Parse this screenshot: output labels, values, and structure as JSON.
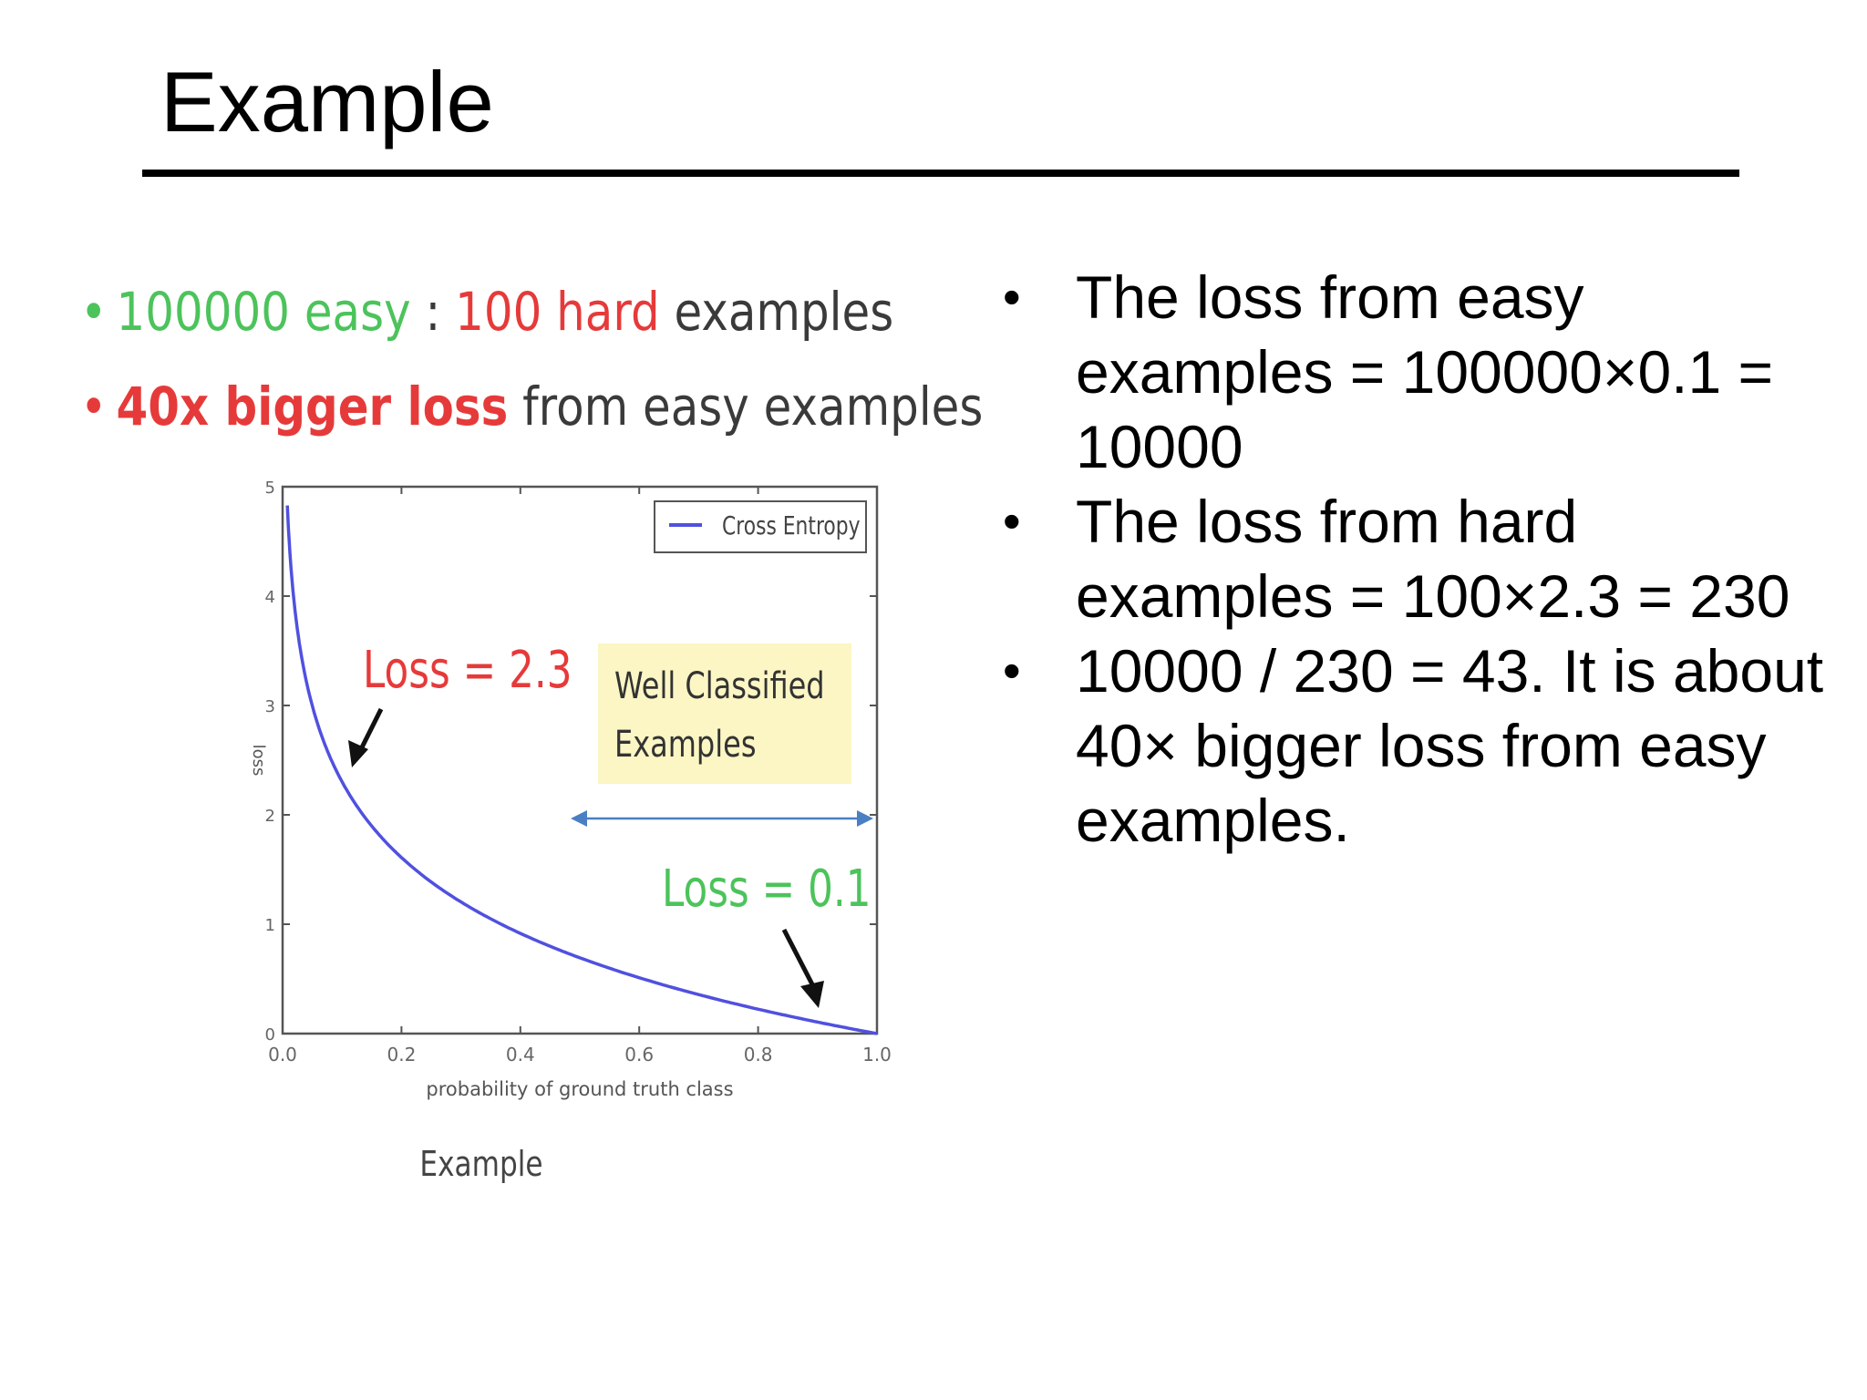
{
  "slide": {
    "title": "Example"
  },
  "left_bullets": [
    {
      "parts": [
        {
          "text": "100000 easy",
          "color": "#4cc35b",
          "bold": false
        },
        {
          "text": " : ",
          "color": "#3a3a3a",
          "bold": false
        },
        {
          "text": "100 hard",
          "color": "#e63a3a",
          "bold": false
        },
        {
          "text": " examples",
          "color": "#3a3a3a",
          "bold": false
        }
      ],
      "bullet_color": "#4cc35b"
    },
    {
      "parts": [
        {
          "text": "40x bigger loss",
          "color": "#e63a3a",
          "bold": true
        },
        {
          "text": " from easy examples",
          "color": "#3a3a3a",
          "bold": false
        }
      ],
      "bullet_color": "#e63a3a"
    }
  ],
  "right_bullets": [
    "The loss from easy examples = 100000×0.1 = 10000",
    "The loss from hard examples = 100×2.3 = 230",
    "10000 / 230 = 43. It is about 40× bigger loss from easy examples."
  ],
  "chart_data": {
    "type": "line",
    "xlabel": "probability of ground truth class",
    "ylabel": "loss",
    "caption": "Example",
    "xlim": [
      0,
      1
    ],
    "ylim": [
      0,
      5
    ],
    "x_ticks": [
      "0.0",
      "0.2",
      "0.4",
      "0.6",
      "0.8",
      "1.0"
    ],
    "y_ticks": [
      "0",
      "1",
      "2",
      "3",
      "4",
      "5"
    ],
    "legend_position": "top-right",
    "series": [
      {
        "name": "Cross Entropy",
        "color": "#5050e0",
        "function": "-ln(p)",
        "x_range": [
          0.008,
          1.0
        ]
      }
    ],
    "annotations": [
      {
        "text": "Loss = 2.3",
        "color": "#e63a3a",
        "x": 0.1,
        "y": 2.3
      },
      {
        "text": "Loss = 0.1",
        "color": "#4cc35b",
        "x": 0.9,
        "y": 0.1
      }
    ],
    "highlight_box": {
      "lines": [
        "Well Classified",
        "Examples"
      ],
      "fill": "#fbf6c4",
      "span": [
        0.5,
        1.0
      ]
    }
  }
}
